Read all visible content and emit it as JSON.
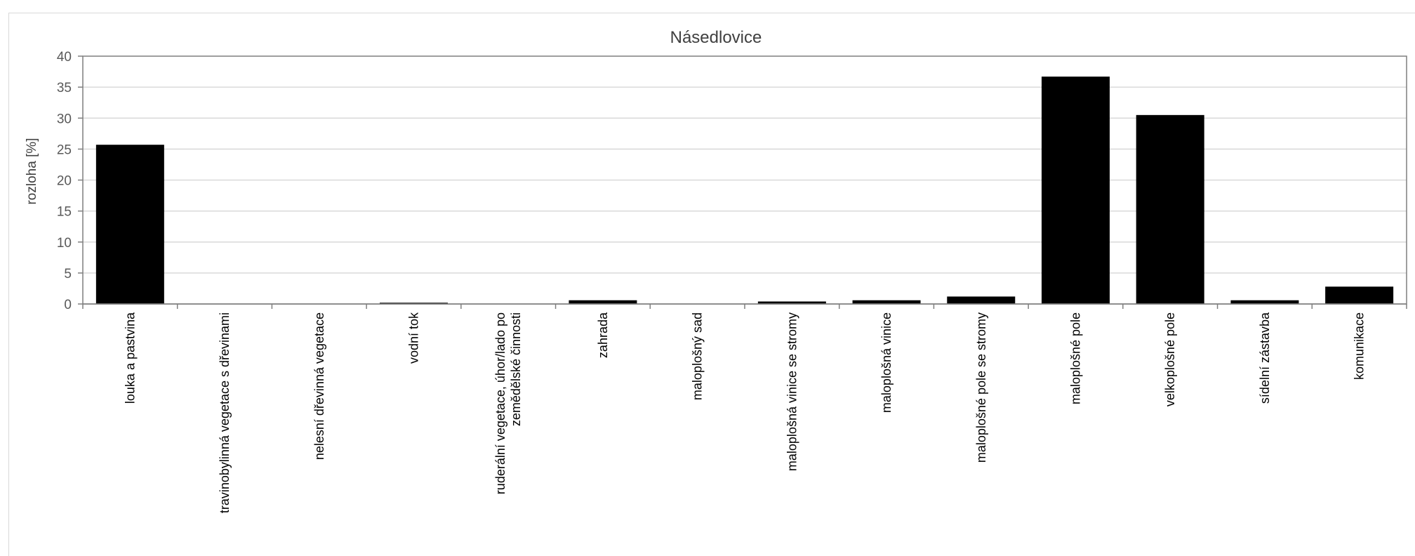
{
  "chart_data": {
    "type": "bar",
    "title": "Násedlovice",
    "xlabel": "",
    "ylabel": "rozloha [%]",
    "ylim": [
      0,
      40
    ],
    "yticks": [
      0,
      5,
      10,
      15,
      20,
      25,
      30,
      35,
      40
    ],
    "grid": true,
    "legend": "none",
    "bar_color": "#000000",
    "categories": [
      [
        "louka a pastvina"
      ],
      [
        "travinobylinná vegetace s dřevinami"
      ],
      [
        "nelesní dřevinná vegetace"
      ],
      [
        "vodní tok"
      ],
      [
        "ruderální vegetace, úhor/lado po",
        "zemědělské činnosti"
      ],
      [
        "zahrada"
      ],
      [
        "maloplošný sad"
      ],
      [
        "maloplošná vinice se stromy"
      ],
      [
        "maloplošná vinice"
      ],
      [
        "maloplošné pole se stromy"
      ],
      [
        "maloplošné pole"
      ],
      [
        "velkoplošné pole"
      ],
      [
        "sídelní zástavba"
      ],
      [
        "komunikace"
      ]
    ],
    "values": [
      25.7,
      0,
      0,
      0.2,
      0,
      0.6,
      0,
      0.4,
      0.6,
      1.2,
      36.7,
      30.5,
      0.6,
      2.8
    ]
  }
}
